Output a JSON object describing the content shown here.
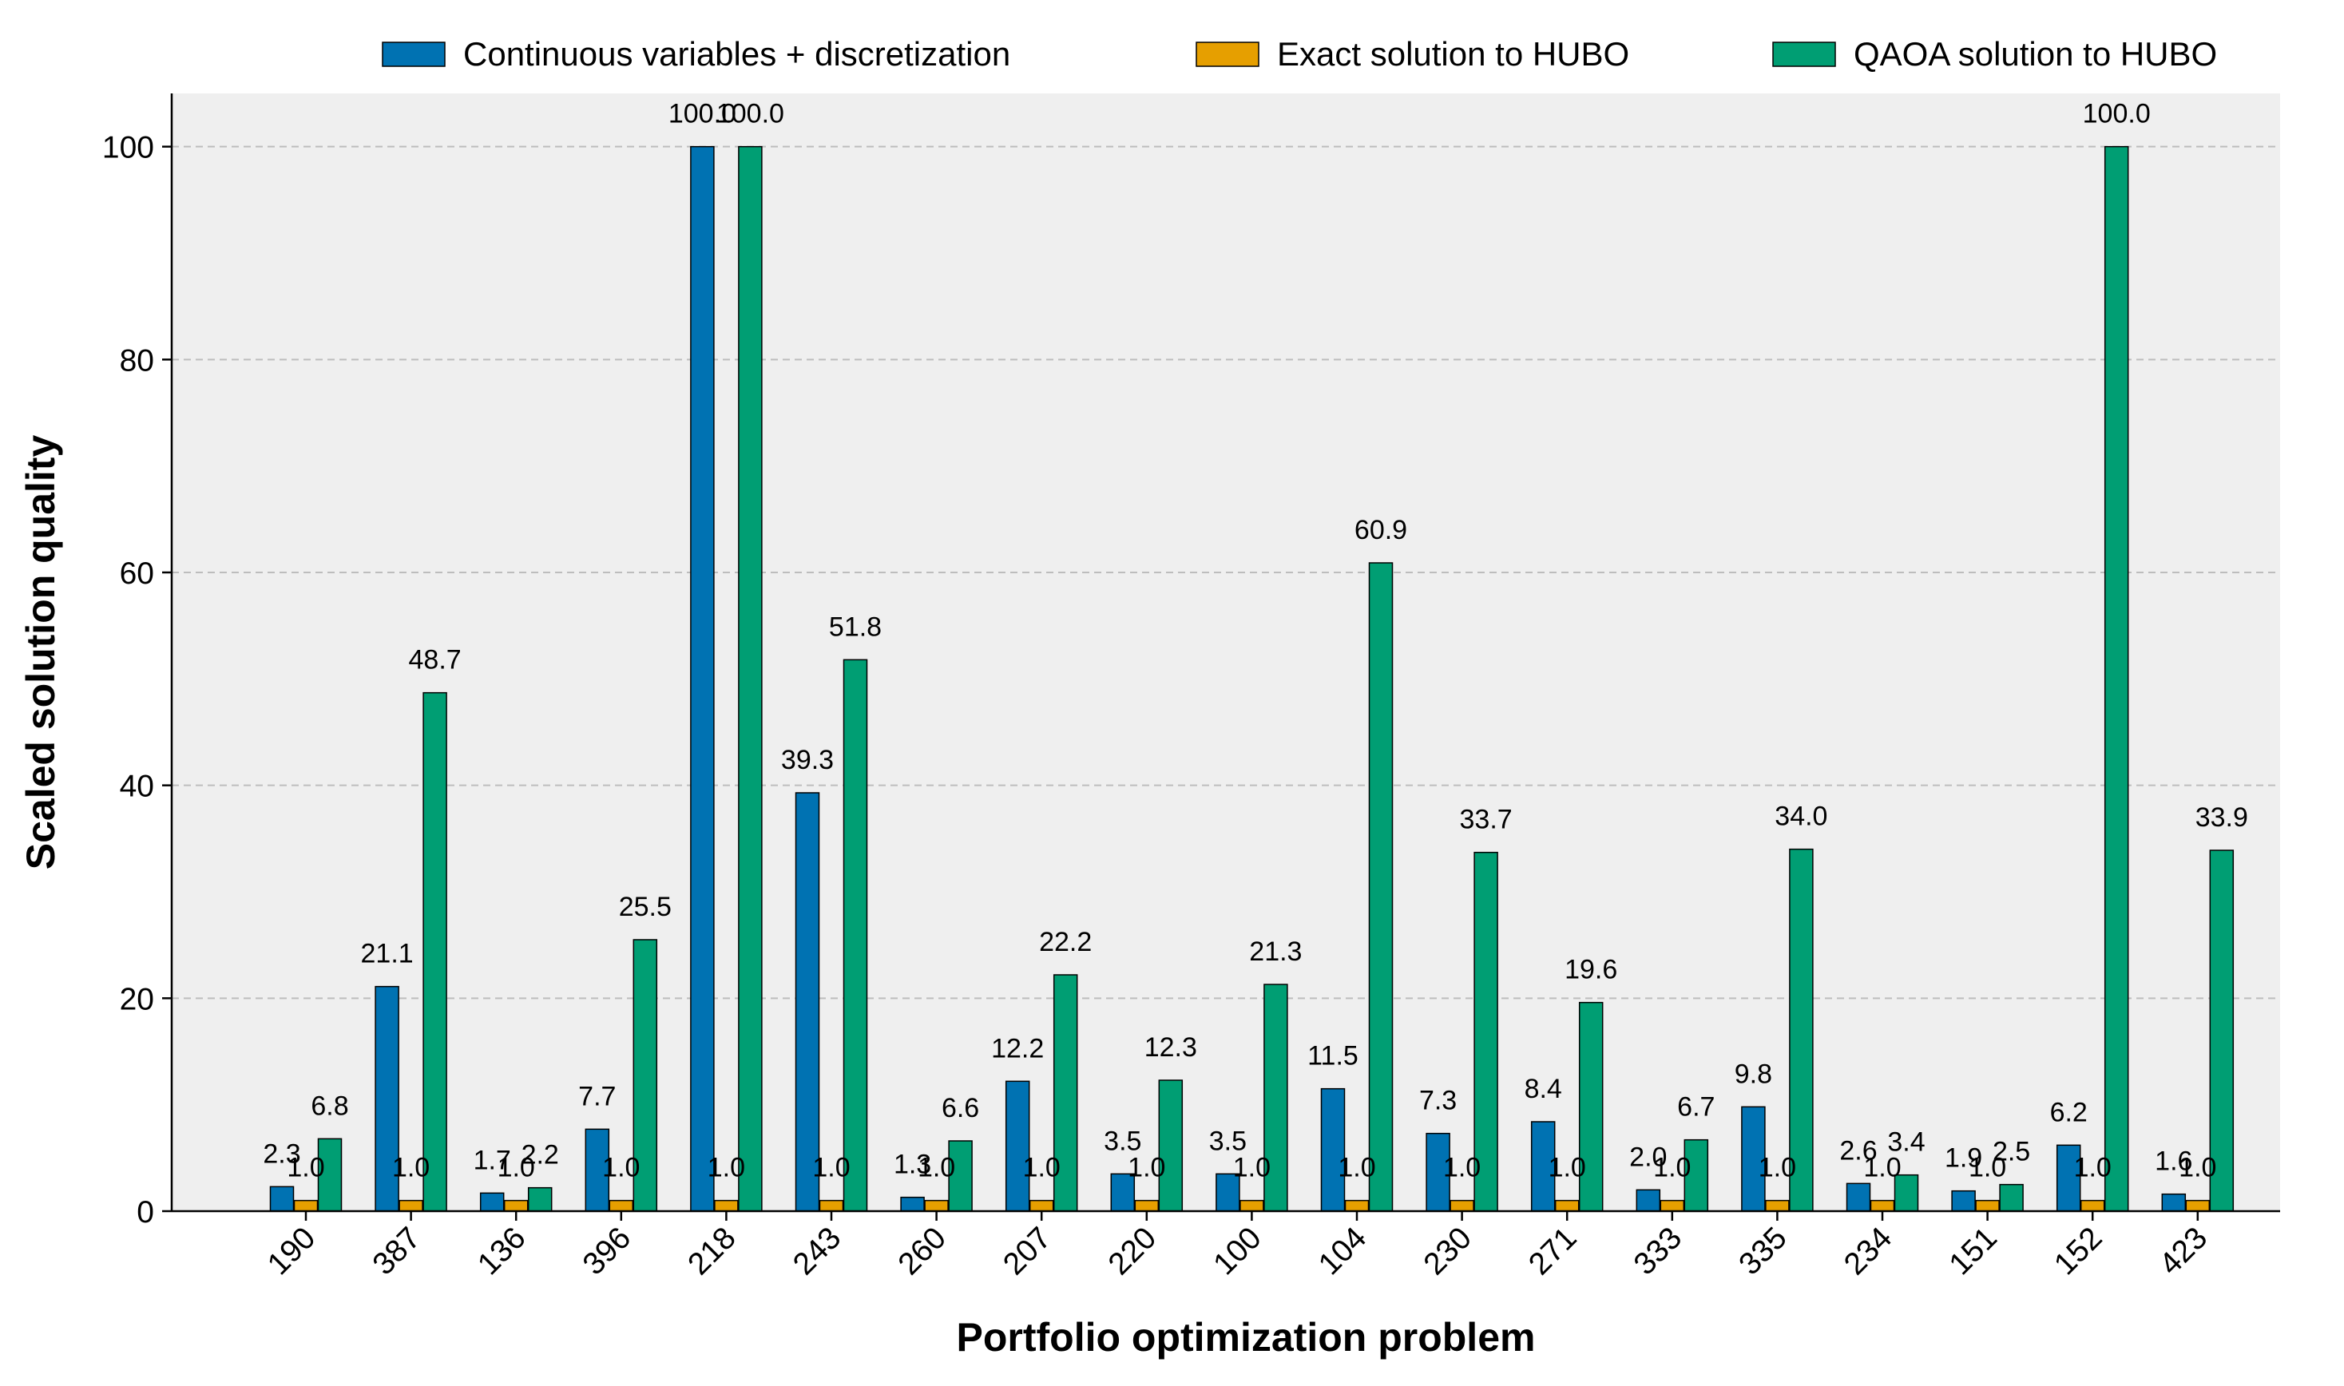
{
  "chart_data": {
    "type": "bar",
    "xlabel": "Portfolio optimization problem",
    "ylabel": "Scaled solution quality",
    "ylim": [
      0,
      105
    ],
    "yticks": [
      0,
      20,
      40,
      60,
      80,
      100
    ],
    "grid": "horizontal dashed",
    "legend_position": "top",
    "categories": [
      "190",
      "387",
      "136",
      "396",
      "218",
      "243",
      "260",
      "207",
      "220",
      "100",
      "104",
      "230",
      "271",
      "333",
      "335",
      "234",
      "151",
      "152",
      "423"
    ],
    "series": [
      {
        "name": "Continuous variables + discretization",
        "color": "#0072B2",
        "values": [
          2.3,
          21.1,
          1.7,
          7.7,
          100.0,
          39.3,
          1.3,
          12.2,
          3.5,
          3.5,
          11.5,
          7.3,
          8.4,
          2.0,
          9.8,
          2.6,
          1.9,
          6.2,
          1.6
        ],
        "labels": [
          "2.3",
          "21.1",
          "1.7",
          "7.7",
          "100.0",
          "39.3",
          "1.3",
          "12.2",
          "3.5",
          "3.5",
          "11.5",
          "7.3",
          "8.4",
          "2.0",
          "9.8",
          "2.6",
          "1.9",
          "6.2",
          "1.6"
        ]
      },
      {
        "name": "Exact solution to HUBO",
        "color": "#E69F00",
        "values": [
          1.0,
          1.0,
          1.0,
          1.0,
          1.0,
          1.0,
          1.0,
          1.0,
          1.0,
          1.0,
          1.0,
          1.0,
          1.0,
          1.0,
          1.0,
          1.0,
          1.0,
          1.0,
          1.0
        ],
        "labels": [
          "1.0",
          "1.0",
          "1.0",
          "1.0",
          "1.0",
          "1.0",
          "1.0",
          "1.0",
          "1.0",
          "1.0",
          "1.0",
          "1.0",
          "1.0",
          "1.0",
          "1.0",
          "1.0",
          "1.0",
          "1.0",
          "1.0"
        ]
      },
      {
        "name": "QAOA solution to HUBO",
        "color": "#009E73",
        "values": [
          6.8,
          48.7,
          2.2,
          25.5,
          100.0,
          51.8,
          6.6,
          22.2,
          12.3,
          21.3,
          60.9,
          33.7,
          19.6,
          6.7,
          34.0,
          3.4,
          2.5,
          100.0,
          33.9
        ],
        "labels": [
          "6.8",
          "48.7",
          "2.2",
          "25.5",
          "100.0",
          "51.8",
          "6.6",
          "22.2",
          "12.3",
          "21.3",
          "60.9",
          "33.7",
          "19.6",
          "6.7",
          "34.0",
          "3.4",
          "2.5",
          "100.0",
          "33.9"
        ]
      }
    ],
    "colors": {
      "plot_background": "#EFEFEF",
      "grid": "#BDBDBD",
      "bar_edge": "#000000"
    }
  }
}
